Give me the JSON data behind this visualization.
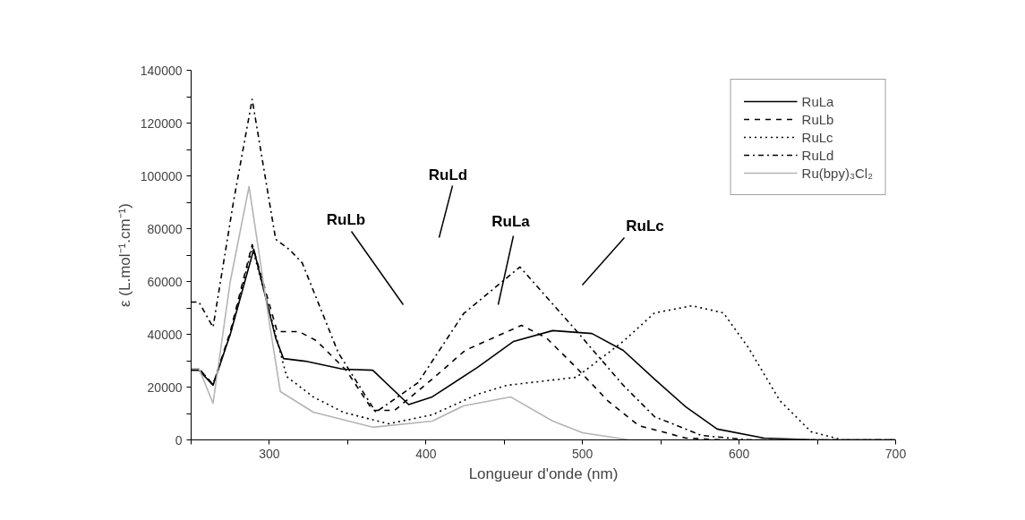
{
  "chart_data": {
    "type": "line",
    "xlabel": "Longueur d'onde (nm)",
    "ylabel": "ε (L.mol⁻¹.cm⁻¹)",
    "xlim": [
      250,
      700
    ],
    "ylim": [
      0,
      140000
    ],
    "xticks": [
      {
        "value": 250,
        "label": null
      },
      300,
      {
        "value": 350,
        "label": null
      },
      400,
      {
        "value": 450,
        "label": null
      },
      500,
      {
        "value": 550,
        "label": null
      },
      600,
      {
        "value": 650,
        "label": null
      },
      700
    ],
    "yticks": [
      0,
      {
        "value": 10000,
        "label": null
      },
      20000,
      {
        "value": 30000,
        "label": null
      },
      40000,
      {
        "value": 50000,
        "label": null
      },
      60000,
      {
        "value": 70000,
        "label": null
      },
      80000,
      {
        "value": 90000,
        "label": null
      },
      100000,
      {
        "value": 110000,
        "label": null
      },
      120000,
      {
        "value": 130000,
        "label": null
      },
      140000
    ],
    "grid": false,
    "legend": "top right",
    "marker": "none",
    "series": [
      {
        "name": "RuLa",
        "color": "#000000",
        "line_style": "solid",
        "x": [
          250,
          255,
          264,
          275,
          290,
          304,
          309,
          323,
          347,
          366,
          389,
          404,
          433,
          456,
          481,
          506,
          526,
          546,
          566,
          586,
          616,
          650,
          700
        ],
        "values": [
          26400,
          26400,
          20700,
          40000,
          72200,
          38600,
          30800,
          29800,
          26800,
          26400,
          13400,
          16300,
          27500,
          37300,
          41400,
          40300,
          33900,
          23000,
          12500,
          4100,
          700,
          0,
          0
        ]
      },
      {
        "name": "RuLb",
        "color": "#000000",
        "line_style": "dashed",
        "x": [
          250,
          255,
          264,
          275,
          289,
          305,
          319,
          330,
          349,
          366,
          380,
          404,
          425,
          461,
          477,
          497,
          516,
          536,
          566,
          590,
          700
        ],
        "values": [
          27000,
          27000,
          21000,
          41000,
          74000,
          41000,
          41000,
          37600,
          26400,
          11200,
          11200,
          23000,
          33900,
          43400,
          38600,
          26800,
          14900,
          5400,
          700,
          0,
          0
        ]
      },
      {
        "name": "RuLc",
        "color": "#000000",
        "line_style": "dotted",
        "x": [
          250,
          255,
          264,
          275,
          289,
          302,
          311,
          328,
          347,
          376,
          404,
          433,
          452,
          496,
          526,
          546,
          570,
          590,
          606,
          626,
          646,
          666,
          700
        ],
        "values": [
          27000,
          27000,
          21000,
          40000,
          73000,
          44400,
          24000,
          16300,
          10500,
          6100,
          9500,
          17300,
          20700,
          23700,
          37300,
          48100,
          50800,
          48100,
          34900,
          14900,
          3100,
          0,
          0
        ]
      },
      {
        "name": "RuLd",
        "color": "#000000",
        "line_style": "dashdot",
        "x": [
          250,
          255,
          264,
          277,
          289,
          304,
          313,
          321,
          344,
          368,
          395,
          424,
          460,
          493,
          526,
          546,
          576,
          606,
          700
        ],
        "values": [
          52200,
          52200,
          42700,
          90000,
          129000,
          76000,
          72000,
          67000,
          33000,
          10500,
          21700,
          47800,
          65500,
          43400,
          20700,
          8800,
          1700,
          0,
          0
        ]
      },
      {
        "name": "Ru(bpy)₃Cl₂",
        "color": "#b4b4b4",
        "line_style": "solid",
        "x": [
          250,
          255,
          264,
          275,
          287,
          300,
          307,
          328,
          366,
          404,
          424,
          454,
          481,
          500,
          530,
          700
        ],
        "values": [
          27000,
          27000,
          13900,
          60000,
          96000,
          44400,
          18300,
          10500,
          4800,
          7100,
          12900,
          16300,
          7100,
          2700,
          0,
          0
        ]
      }
    ],
    "annotations": [
      "RuLb",
      "RuLd",
      "RuLa",
      "RuLc"
    ]
  }
}
